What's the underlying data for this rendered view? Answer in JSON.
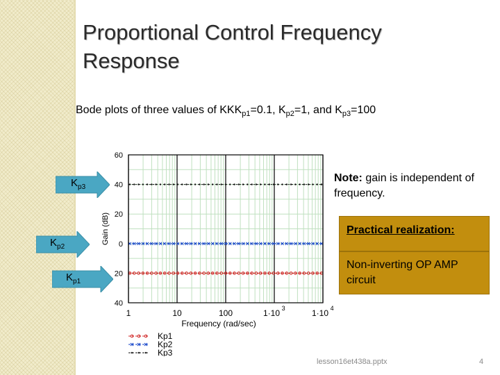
{
  "slide": {
    "title_line1": "Proportional Control Frequency",
    "title_line2": "Response",
    "subtitle_prefix": "Bode plots of three values of KK",
    "subtitle_parts": [
      {
        "base": "K",
        "sub": "p1",
        "after": "=0.1, "
      },
      {
        "base": "K",
        "sub": "p2",
        "after": "=1,  and "
      },
      {
        "base": "K",
        "sub": "p3",
        "after": "=100"
      }
    ],
    "arrows": [
      {
        "base": "K",
        "sub": "p3"
      },
      {
        "base": "K",
        "sub": "p2"
      },
      {
        "base": "K",
        "sub": "p1"
      }
    ],
    "note_bold": "Note:",
    "note_text": "  gain is independent of frequency.",
    "box_heading": "Practical realization:",
    "box_body": "Non-inverting OP AMP circuit",
    "footer_file": "lesson16et438a.pptx",
    "page_number": "4",
    "colors": {
      "box": "#c28e0e",
      "arrow": "#4aa7c3",
      "kp1": "#d02020",
      "kp2": "#1040c8",
      "kp3": "#111111"
    }
  },
  "chart_data": {
    "type": "line",
    "xscale": "log",
    "xlim": [
      1,
      10000
    ],
    "ylim": [
      -40,
      60
    ],
    "ytick_labels": [
      "60",
      "40",
      "20",
      "0",
      "20",
      "40"
    ],
    "ytick_values": [
      60,
      40,
      20,
      0,
      -20,
      -40
    ],
    "xtick_labels": [
      "1",
      "10",
      "100",
      "1·10",
      "1·10"
    ],
    "xtick_exps": [
      "",
      "",
      "",
      "3",
      "4"
    ],
    "xtick_values": [
      1,
      10,
      100,
      1000,
      10000
    ],
    "xlabel": "Frequency  (rad/sec)",
    "ylabel": "Gain (dB)",
    "grid": true,
    "series": [
      {
        "name": "Kp1",
        "y": -20,
        "color": "#d02020",
        "marker": "circle"
      },
      {
        "name": "Kp2",
        "y": 0,
        "color": "#1040c8",
        "marker": "x"
      },
      {
        "name": "Kp3",
        "y": 40,
        "color": "#111111",
        "marker": "dot"
      }
    ],
    "legend_position": "bottom-left"
  }
}
